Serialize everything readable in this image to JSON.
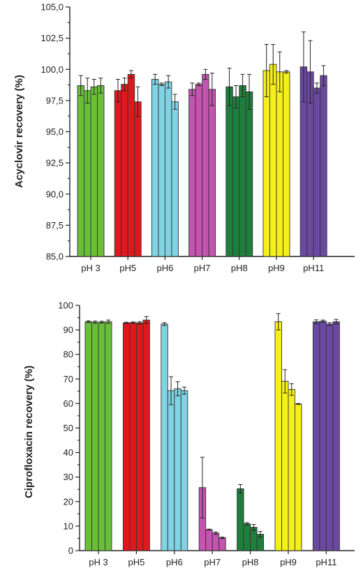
{
  "chart_data": [
    {
      "type": "bar",
      "ylabel": "Acyclovir recovery (%)",
      "xlabel": "",
      "ylim": [
        85,
        105
      ],
      "yticks": [
        "85,0",
        "87,5",
        "90,0",
        "92,5",
        "95,0",
        "97,5",
        "100,0",
        "102,5",
        "105,0"
      ],
      "categories": [
        "pH 3",
        "pH5",
        "pH6",
        "pH7",
        "pH8",
        "pH9",
        "pH11"
      ],
      "colors": [
        "#6abf3a",
        "#e0181e",
        "#7fd3e3",
        "#c354b0",
        "#1e7f3c",
        "#f5ef1a",
        "#6b49a1"
      ],
      "groups": [
        {
          "values": [
            98.7,
            98.3,
            98.6,
            98.7
          ],
          "errors": [
            0.8,
            1.0,
            0.6,
            0.6
          ]
        },
        {
          "values": [
            98.3,
            98.8,
            99.6,
            97.4
          ],
          "errors": [
            0.9,
            0.5,
            0.3,
            1.2
          ]
        },
        {
          "values": [
            99.2,
            98.8,
            99.0,
            97.4
          ],
          "errors": [
            0.4,
            0.1,
            0.5,
            0.6
          ]
        },
        {
          "values": [
            98.4,
            98.8,
            99.6,
            98.4
          ],
          "errors": [
            0.5,
            0.1,
            0.4,
            1.3
          ]
        },
        {
          "values": [
            98.6,
            97.8,
            98.7,
            98.2
          ],
          "errors": [
            1.5,
            0.9,
            0.9,
            1.4
          ]
        },
        {
          "values": [
            99.9,
            100.4,
            99.8,
            99.8
          ],
          "errors": [
            2.1,
            1.6,
            1.6,
            0.1
          ]
        },
        {
          "values": [
            100.2,
            99.8,
            98.5,
            99.5
          ],
          "errors": [
            2.8,
            2.5,
            0.4,
            0.8
          ]
        }
      ]
    },
    {
      "type": "bar",
      "ylabel": "Ciprofloxacin recovery (%)",
      "xlabel": "",
      "ylim": [
        0,
        105
      ],
      "yticks": [
        "0",
        "10",
        "20",
        "30",
        "40",
        "50",
        "60",
        "70",
        "80",
        "90",
        "100"
      ],
      "categories": [
        "pH 3",
        "pH5",
        "pH6",
        "pH7",
        "pH8",
        "pH9",
        "pH11"
      ],
      "colors": [
        "#6abf3a",
        "#e0181e",
        "#7fd3e3",
        "#c354b0",
        "#1e7f3c",
        "#f5ef1a",
        "#6b49a1"
      ],
      "groups": [
        {
          "values": [
            98.0,
            97.8,
            97.8,
            98.0
          ],
          "errors": [
            0.4,
            0.5,
            0.4,
            0.7
          ]
        },
        {
          "values": [
            97.5,
            97.6,
            97.5,
            98.7
          ],
          "errors": [
            0.3,
            0.3,
            0.5,
            1.5
          ]
        },
        {
          "values": [
            97.0,
            68.5,
            69.3,
            68.5
          ],
          "errors": [
            0.6,
            6.0,
            3.0,
            1.5
          ]
        },
        {
          "values": [
            27.0,
            9.0,
            7.5,
            5.5
          ],
          "errors": [
            13.0,
            0.2,
            0.5,
            0.3
          ]
        },
        {
          "values": [
            26.5,
            11.5,
            10.0,
            7.0
          ],
          "errors": [
            1.8,
            0.5,
            1.2,
            1.2
          ]
        },
        {
          "values": [
            98.0,
            72.5,
            69.0,
            62.8
          ],
          "errors": [
            3.5,
            5.0,
            2.5,
            0.2
          ]
        },
        {
          "values": [
            98.0,
            98.2,
            97.0,
            98.0
          ],
          "errors": [
            0.8,
            0.5,
            0.6,
            1.0
          ]
        }
      ]
    }
  ]
}
